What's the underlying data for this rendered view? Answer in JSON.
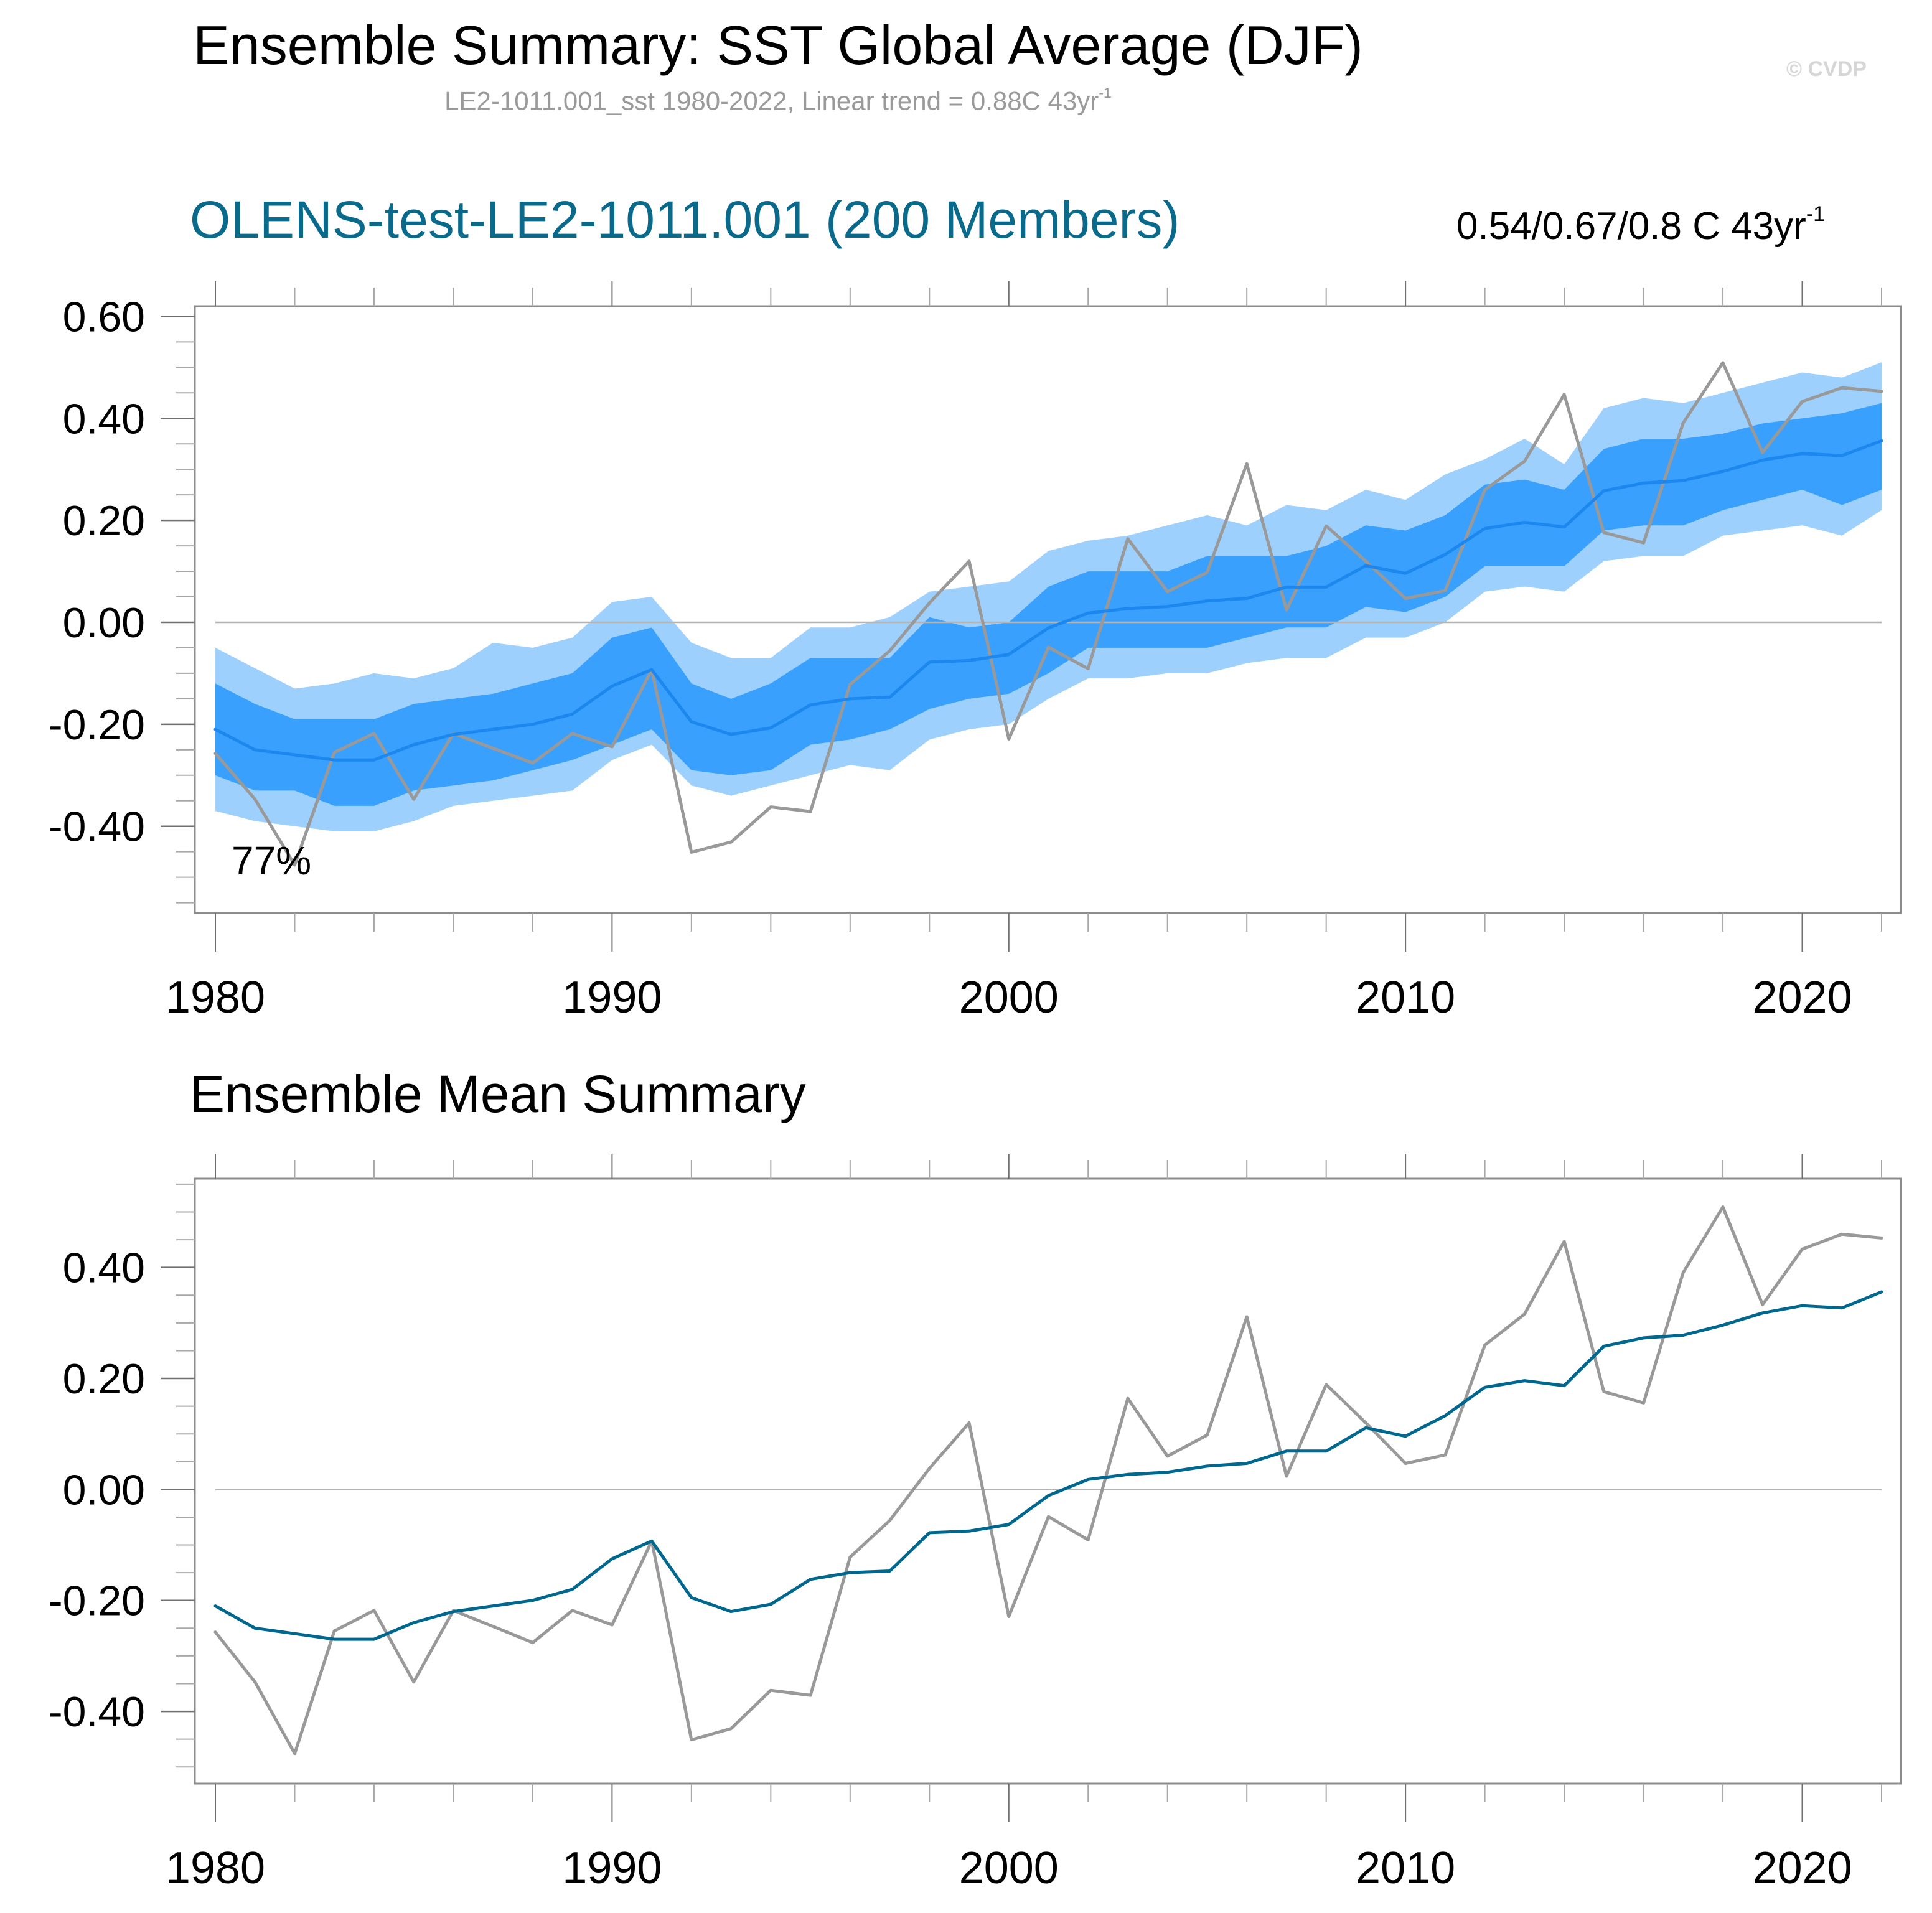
{
  "header": {
    "title": "Ensemble Summary: SST Global Average (DJF)",
    "subtitle_main": "LE2-1011.001_sst 1980-2022, Linear trend = 0.88C 43yr",
    "subtitle_sup": "-1",
    "copyright": "© CVDP"
  },
  "colors": {
    "outer_band": "#9ED0FD",
    "inner_band": "#39A0FD",
    "ensemble_mean_top": "#1C88EF",
    "ensemble_mean_bottom": "#00678F",
    "observations": "#999999",
    "panel_title": "#0A6A8C",
    "zero_line": "#b4b4b4",
    "axis": "#8c8c8c"
  },
  "chart_data": [
    {
      "type": "area",
      "title": "OLENS-test-LE2-1011.001 (200 Members)",
      "trend_text_main": "0.54/0.67/0.8 C 43yr",
      "trend_text_sup": "-1",
      "annotation": "77%",
      "xlabel": "",
      "ylabel": "",
      "xlim": [
        1980,
        2022
      ],
      "ylim": [
        -0.57,
        0.62
      ],
      "yticks": [
        0.6,
        0.4,
        0.2,
        0.0,
        -0.2,
        -0.4
      ],
      "ytick_labels": [
        "0.60",
        "0.40",
        "0.20",
        "0.00",
        "-0.20",
        "-0.40"
      ],
      "xticks": [
        1980,
        1990,
        2000,
        2010,
        2020
      ],
      "xtick_labels": [
        "1980",
        "1990",
        "2000",
        "2010",
        "2020"
      ],
      "grid": false,
      "zero_line": true,
      "x": [
        1980,
        1981,
        1982,
        1983,
        1984,
        1985,
        1986,
        1987,
        1988,
        1989,
        1990,
        1991,
        1992,
        1993,
        1994,
        1995,
        1996,
        1997,
        1998,
        1999,
        2000,
        2001,
        2002,
        2003,
        2004,
        2005,
        2006,
        2007,
        2008,
        2009,
        2010,
        2011,
        2012,
        2013,
        2014,
        2015,
        2016,
        2017,
        2018,
        2019,
        2020,
        2021,
        2022
      ],
      "series": [
        {
          "name": "outer_upper",
          "values": [
            -0.05,
            -0.09,
            -0.13,
            -0.12,
            -0.1,
            -0.11,
            -0.09,
            -0.04,
            -0.05,
            -0.03,
            0.04,
            0.05,
            -0.04,
            -0.07,
            -0.07,
            -0.01,
            -0.01,
            0.01,
            0.06,
            0.07,
            0.08,
            0.14,
            0.16,
            0.17,
            0.19,
            0.21,
            0.19,
            0.23,
            0.22,
            0.26,
            0.24,
            0.29,
            0.32,
            0.36,
            0.31,
            0.42,
            0.44,
            0.43,
            0.45,
            0.47,
            0.49,
            0.48,
            0.51
          ]
        },
        {
          "name": "inner_upper",
          "values": [
            -0.12,
            -0.16,
            -0.19,
            -0.19,
            -0.19,
            -0.16,
            -0.15,
            -0.14,
            -0.12,
            -0.1,
            -0.03,
            -0.01,
            -0.12,
            -0.15,
            -0.12,
            -0.07,
            -0.07,
            -0.07,
            0.01,
            -0.01,
            0.0,
            0.07,
            0.1,
            0.1,
            0.1,
            0.13,
            0.13,
            0.13,
            0.15,
            0.19,
            0.18,
            0.21,
            0.27,
            0.28,
            0.26,
            0.34,
            0.36,
            0.36,
            0.37,
            0.39,
            0.4,
            0.41,
            0.43
          ]
        },
        {
          "name": "inner_lower",
          "values": [
            -0.3,
            -0.33,
            -0.33,
            -0.36,
            -0.36,
            -0.33,
            -0.32,
            -0.31,
            -0.29,
            -0.27,
            -0.24,
            -0.21,
            -0.29,
            -0.3,
            -0.29,
            -0.24,
            -0.23,
            -0.21,
            -0.17,
            -0.15,
            -0.14,
            -0.1,
            -0.05,
            -0.05,
            -0.05,
            -0.05,
            -0.03,
            -0.01,
            -0.01,
            0.03,
            0.02,
            0.05,
            0.11,
            0.11,
            0.11,
            0.18,
            0.19,
            0.19,
            0.22,
            0.24,
            0.26,
            0.23,
            0.26
          ]
        },
        {
          "name": "outer_lower",
          "values": [
            -0.37,
            -0.39,
            -0.4,
            -0.41,
            -0.41,
            -0.39,
            -0.36,
            -0.35,
            -0.34,
            -0.33,
            -0.27,
            -0.24,
            -0.32,
            -0.34,
            -0.32,
            -0.3,
            -0.28,
            -0.29,
            -0.23,
            -0.21,
            -0.2,
            -0.15,
            -0.11,
            -0.11,
            -0.1,
            -0.1,
            -0.08,
            -0.07,
            -0.07,
            -0.03,
            -0.03,
            0.0,
            0.06,
            0.07,
            0.06,
            0.12,
            0.13,
            0.13,
            0.17,
            0.18,
            0.19,
            0.17,
            0.22
          ]
        },
        {
          "name": "ensemble_mean",
          "values": [
            -0.21,
            -0.25,
            -0.26,
            -0.27,
            -0.27,
            -0.24,
            -0.22,
            -0.21,
            -0.2,
            -0.18,
            -0.125,
            -0.093,
            -0.195,
            -0.22,
            -0.207,
            -0.162,
            -0.15,
            -0.147,
            -0.078,
            -0.075,
            -0.063,
            -0.011,
            0.018,
            0.027,
            0.031,
            0.042,
            0.047,
            0.069,
            0.069,
            0.111,
            0.096,
            0.133,
            0.184,
            0.196,
            0.187,
            0.258,
            0.273,
            0.278,
            0.296,
            0.318,
            0.331,
            0.327,
            0.356
          ]
        },
        {
          "name": "observations",
          "values": [
            -0.257,
            -0.347,
            -0.476,
            -0.255,
            -0.218,
            -0.347,
            -0.218,
            -0.247,
            -0.276,
            -0.218,
            -0.244,
            -0.093,
            -0.451,
            -0.431,
            -0.362,
            -0.371,
            -0.122,
            -0.056,
            0.038,
            0.12,
            -0.229,
            -0.049,
            -0.091,
            0.164,
            0.06,
            0.098,
            0.311,
            0.024,
            0.189,
            0.12,
            0.047,
            0.062,
            0.26,
            0.316,
            0.447,
            0.176,
            0.156,
            0.391,
            0.509,
            0.333,
            0.433,
            0.46,
            0.453
          ]
        }
      ]
    },
    {
      "type": "line",
      "title": "Ensemble Mean Summary",
      "xlabel": "",
      "ylabel": "",
      "xlim": [
        1980,
        2022
      ],
      "ylim": [
        -0.53,
        0.56
      ],
      "yticks": [
        0.4,
        0.2,
        0.0,
        -0.2,
        -0.4
      ],
      "ytick_labels": [
        "0.40",
        "0.20",
        "0.00",
        "-0.20",
        "-0.40"
      ],
      "xticks": [
        1980,
        1990,
        2000,
        2010,
        2020
      ],
      "xtick_labels": [
        "1980",
        "1990",
        "2000",
        "2010",
        "2020"
      ],
      "grid": false,
      "zero_line": true,
      "x": [
        1980,
        1981,
        1982,
        1983,
        1984,
        1985,
        1986,
        1987,
        1988,
        1989,
        1990,
        1991,
        1992,
        1993,
        1994,
        1995,
        1996,
        1997,
        1998,
        1999,
        2000,
        2001,
        2002,
        2003,
        2004,
        2005,
        2006,
        2007,
        2008,
        2009,
        2010,
        2011,
        2012,
        2013,
        2014,
        2015,
        2016,
        2017,
        2018,
        2019,
        2020,
        2021,
        2022
      ],
      "series": [
        {
          "name": "ensemble_mean",
          "values": [
            -0.21,
            -0.25,
            -0.26,
            -0.27,
            -0.27,
            -0.24,
            -0.22,
            -0.21,
            -0.2,
            -0.18,
            -0.125,
            -0.093,
            -0.195,
            -0.22,
            -0.207,
            -0.162,
            -0.15,
            -0.147,
            -0.078,
            -0.075,
            -0.063,
            -0.011,
            0.018,
            0.027,
            0.031,
            0.042,
            0.047,
            0.069,
            0.069,
            0.111,
            0.096,
            0.133,
            0.184,
            0.196,
            0.187,
            0.258,
            0.273,
            0.278,
            0.296,
            0.318,
            0.331,
            0.327,
            0.356
          ]
        },
        {
          "name": "observations",
          "values": [
            -0.257,
            -0.347,
            -0.476,
            -0.255,
            -0.218,
            -0.347,
            -0.218,
            -0.247,
            -0.276,
            -0.218,
            -0.244,
            -0.093,
            -0.451,
            -0.431,
            -0.362,
            -0.371,
            -0.122,
            -0.056,
            0.038,
            0.12,
            -0.229,
            -0.049,
            -0.091,
            0.164,
            0.06,
            0.098,
            0.311,
            0.024,
            0.189,
            0.12,
            0.047,
            0.062,
            0.26,
            0.316,
            0.447,
            0.176,
            0.156,
            0.391,
            0.509,
            0.333,
            0.433,
            0.46,
            0.453
          ]
        }
      ]
    }
  ]
}
